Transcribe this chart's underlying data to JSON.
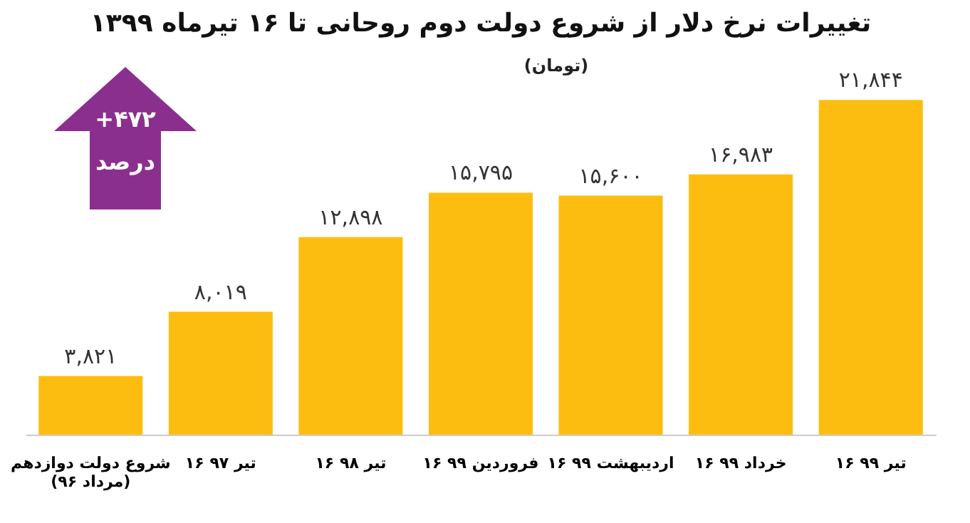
{
  "chart_data": {
    "type": "bar",
    "title": "تغییرات نرخ دلار از شروع دولت دوم روحانی تا ۱۶ تیرماه ۱۳۹۹",
    "subtitle": "(تومان)",
    "categories": [
      "شروع دولت دوازدهم\n(مرداد ۹۶)",
      "۱۶ تیر ۹۷",
      "۱۶ تیر ۹۸",
      "۱۶ فروردین ۹۹",
      "۱۶ اردیبهشت ۹۹",
      "۱۶ خرداد ۹۹",
      "۱۶ تیر ۹۹"
    ],
    "values": [
      3821,
      8019,
      12898,
      15795,
      15600,
      16983,
      21844
    ],
    "value_labels": [
      "۳,۸۲۱",
      "۸,۰۱۹",
      "۱۲,۸۹۸",
      "۱۵,۷۹۵",
      "۱۵,۶۰۰",
      "۱۶,۹۸۳",
      "۲۱,۸۴۴"
    ],
    "color": "#fdbd10",
    "annotations": [
      "+۴۷۲ درصد"
    ],
    "grid": false
  }
}
